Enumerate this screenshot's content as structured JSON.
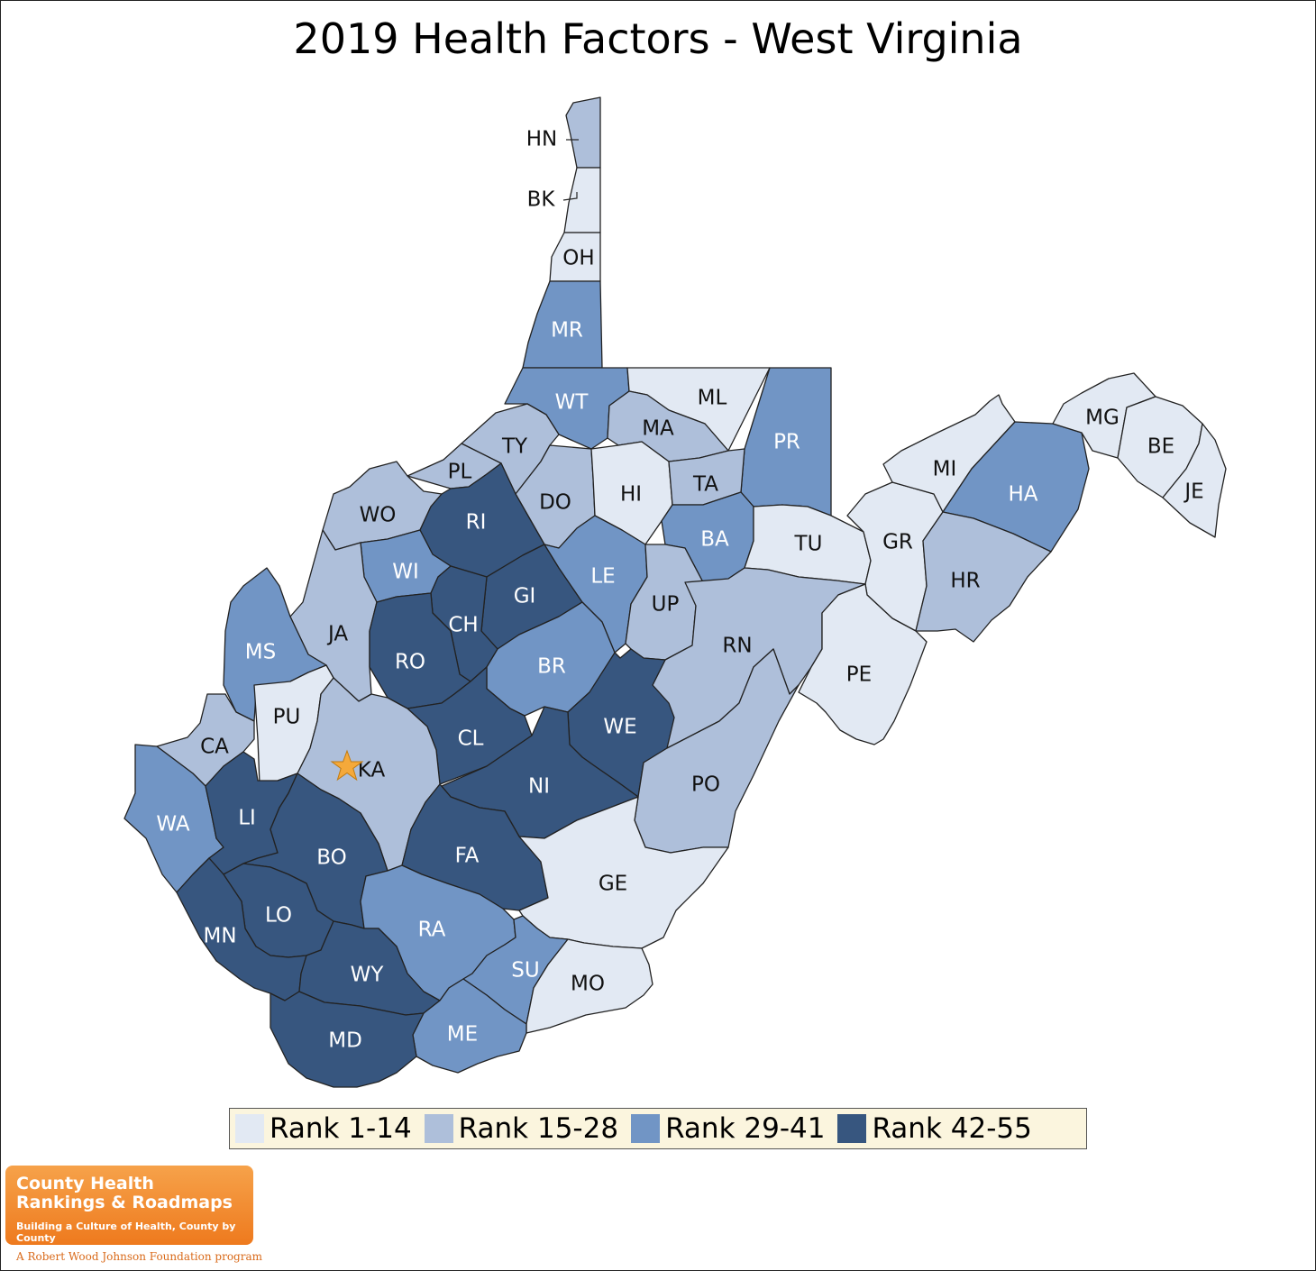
{
  "title": "2019 Health Factors - West Virginia",
  "colors": {
    "r1": "#e2e9f3",
    "r2": "#aebfda",
    "r3": "#7195c5",
    "r4": "#37567f",
    "star": "#f5a93a"
  },
  "legend": [
    {
      "label": "Rank 1-14",
      "rank": 1
    },
    {
      "label": "Rank 15-28",
      "rank": 2
    },
    {
      "label": "Rank 29-41",
      "rank": 3
    },
    {
      "label": "Rank 42-55",
      "rank": 4
    }
  ],
  "counties": [
    {
      "abbr": "HN",
      "rank": 2
    },
    {
      "abbr": "BK",
      "rank": 1
    },
    {
      "abbr": "OH",
      "rank": 1
    },
    {
      "abbr": "MR",
      "rank": 3
    },
    {
      "abbr": "WT",
      "rank": 3
    },
    {
      "abbr": "ML",
      "rank": 1
    },
    {
      "abbr": "MA",
      "rank": 2
    },
    {
      "abbr": "PR",
      "rank": 3
    },
    {
      "abbr": "TY",
      "rank": 2
    },
    {
      "abbr": "PL",
      "rank": 2
    },
    {
      "abbr": "DO",
      "rank": 2
    },
    {
      "abbr": "HI",
      "rank": 1
    },
    {
      "abbr": "TA",
      "rank": 2
    },
    {
      "abbr": "WO",
      "rank": 2
    },
    {
      "abbr": "RI",
      "rank": 4
    },
    {
      "abbr": "BA",
      "rank": 3
    },
    {
      "abbr": "TU",
      "rank": 1
    },
    {
      "abbr": "GR",
      "rank": 1
    },
    {
      "abbr": "MI",
      "rank": 1
    },
    {
      "abbr": "HA",
      "rank": 3
    },
    {
      "abbr": "MG",
      "rank": 1
    },
    {
      "abbr": "BE",
      "rank": 1
    },
    {
      "abbr": "JE",
      "rank": 1
    },
    {
      "abbr": "WI",
      "rank": 3
    },
    {
      "abbr": "GI",
      "rank": 4
    },
    {
      "abbr": "LE",
      "rank": 3
    },
    {
      "abbr": "UP",
      "rank": 2
    },
    {
      "abbr": "HR",
      "rank": 2
    },
    {
      "abbr": "JA",
      "rank": 2
    },
    {
      "abbr": "CH",
      "rank": 4
    },
    {
      "abbr": "MS",
      "rank": 3
    },
    {
      "abbr": "RO",
      "rank": 4
    },
    {
      "abbr": "RN",
      "rank": 2
    },
    {
      "abbr": "PE",
      "rank": 1
    },
    {
      "abbr": "BR",
      "rank": 3
    },
    {
      "abbr": "PU",
      "rank": 1
    },
    {
      "abbr": "WE",
      "rank": 4
    },
    {
      "abbr": "CA",
      "rank": 2
    },
    {
      "abbr": "CL",
      "rank": 4
    },
    {
      "abbr": "KA",
      "rank": 2
    },
    {
      "abbr": "NI",
      "rank": 4
    },
    {
      "abbr": "PO",
      "rank": 2
    },
    {
      "abbr": "WA",
      "rank": 3
    },
    {
      "abbr": "LI",
      "rank": 4
    },
    {
      "abbr": "BO",
      "rank": 4
    },
    {
      "abbr": "FA",
      "rank": 4
    },
    {
      "abbr": "GE",
      "rank": 1
    },
    {
      "abbr": "LO",
      "rank": 4
    },
    {
      "abbr": "MN",
      "rank": 4
    },
    {
      "abbr": "RA",
      "rank": 3
    },
    {
      "abbr": "SU",
      "rank": 3
    },
    {
      "abbr": "WY",
      "rank": 4
    },
    {
      "abbr": "MO",
      "rank": 1
    },
    {
      "abbr": "ME",
      "rank": 3
    },
    {
      "abbr": "MD",
      "rank": 4
    }
  ],
  "capital": "KA",
  "logo": {
    "line1": "County Health",
    "line2": "Rankings & Roadmaps",
    "tagline": "Building a Culture of Health, County by County",
    "foundation": "A Robert Wood Johnson Foundation program"
  }
}
